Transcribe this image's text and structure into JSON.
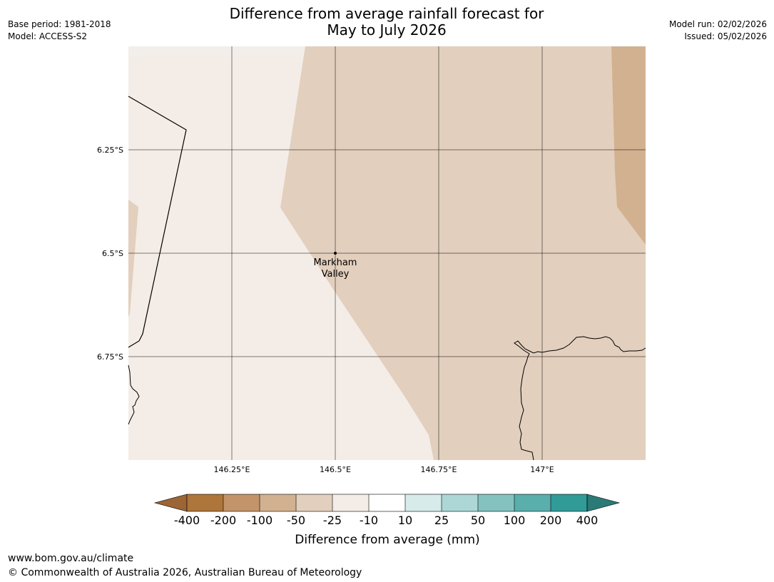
{
  "header": {
    "title_line1": "Difference from average rainfall forecast for",
    "title_line2": "May to July 2026",
    "base_period": "Base period: 1981-2018",
    "model": "Model: ACCESS-S2",
    "model_run": "Model run: 02/02/2026",
    "issued": "Issued: 05/02/2026"
  },
  "map": {
    "lon_labels": [
      "146.25°E",
      "146.5°E",
      "146.75°E",
      "147°E"
    ],
    "lat_labels": [
      "6.25°S",
      "6.5°S",
      "6.75°S"
    ],
    "place": {
      "name_line1": "Markham",
      "name_line2": "Valley"
    }
  },
  "legend": {
    "title": "Difference from average (mm)",
    "ticks": [
      "-400",
      "-200",
      "-100",
      "-50",
      "-25",
      "-10",
      "10",
      "25",
      "50",
      "100",
      "200",
      "400"
    ],
    "colors": {
      "below_min": "#9b6536",
      "bin_1": "#ae763b",
      "bin_2": "#c39469",
      "bin_3": "#d2b190",
      "bin_4": "#e2cfbd",
      "bin_5": "#f4ede7",
      "bin_6": "#ffffff",
      "bin_7": "#d6ebea",
      "bin_8": "#acd7d6",
      "bin_9": "#83c2bf",
      "bin_10": "#5aaeab",
      "bin_11": "#319b98",
      "above_max": "#2b7a78"
    }
  },
  "footer": {
    "url": "www.bom.gov.au/climate",
    "copyright": "© Commonwealth of Australia 2026, Australian Bureau of Meteorology"
  }
}
